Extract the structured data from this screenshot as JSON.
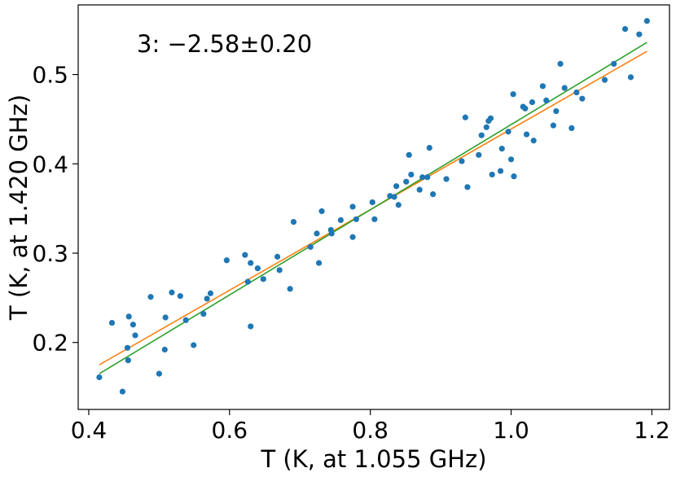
{
  "chart_data": {
    "type": "scatter",
    "xlabel": "T (K, at 1.055 GHz)",
    "ylabel": "T (K, at 1.420 GHz)",
    "annotation": "3: −2.58±0.20",
    "xlim": [
      0.385,
      1.225
    ],
    "ylim": [
      0.125,
      0.578
    ],
    "xticks": [
      0.4,
      0.6,
      0.8,
      1.0,
      1.2
    ],
    "xtick_labels": [
      "0.4",
      "0.6",
      "0.8",
      "1.0",
      "1.2"
    ],
    "yticks": [
      0.2,
      0.3,
      0.4,
      0.5
    ],
    "ytick_labels": [
      "0.2",
      "0.3",
      "0.4",
      "0.5"
    ],
    "grid": false,
    "colors": {
      "points": "#1f77b4",
      "fit_orange": "#ff7f0e",
      "fit_green": "#2ca02c"
    },
    "points": [
      [
        0.415,
        0.161
      ],
      [
        0.433,
        0.222
      ],
      [
        0.448,
        0.145
      ],
      [
        0.455,
        0.194
      ],
      [
        0.456,
        0.18
      ],
      [
        0.457,
        0.229
      ],
      [
        0.463,
        0.22
      ],
      [
        0.466,
        0.208
      ],
      [
        0.488,
        0.251
      ],
      [
        0.5,
        0.165
      ],
      [
        0.508,
        0.192
      ],
      [
        0.509,
        0.228
      ],
      [
        0.518,
        0.256
      ],
      [
        0.53,
        0.252
      ],
      [
        0.538,
        0.225
      ],
      [
        0.549,
        0.197
      ],
      [
        0.563,
        0.232
      ],
      [
        0.568,
        0.249
      ],
      [
        0.573,
        0.255
      ],
      [
        0.596,
        0.292
      ],
      [
        0.622,
        0.298
      ],
      [
        0.626,
        0.268
      ],
      [
        0.63,
        0.289
      ],
      [
        0.63,
        0.218
      ],
      [
        0.64,
        0.283
      ],
      [
        0.648,
        0.271
      ],
      [
        0.668,
        0.296
      ],
      [
        0.671,
        0.281
      ],
      [
        0.686,
        0.26
      ],
      [
        0.691,
        0.335
      ],
      [
        0.715,
        0.307
      ],
      [
        0.724,
        0.322
      ],
      [
        0.727,
        0.289
      ],
      [
        0.731,
        0.347
      ],
      [
        0.744,
        0.326
      ],
      [
        0.745,
        0.322
      ],
      [
        0.758,
        0.337
      ],
      [
        0.775,
        0.352
      ],
      [
        0.775,
        0.318
      ],
      [
        0.78,
        0.338
      ],
      [
        0.803,
        0.357
      ],
      [
        0.806,
        0.338
      ],
      [
        0.828,
        0.364
      ],
      [
        0.834,
        0.363
      ],
      [
        0.837,
        0.375
      ],
      [
        0.84,
        0.354
      ],
      [
        0.851,
        0.38
      ],
      [
        0.855,
        0.41
      ],
      [
        0.858,
        0.388
      ],
      [
        0.87,
        0.371
      ],
      [
        0.874,
        0.385
      ],
      [
        0.881,
        0.385
      ],
      [
        0.884,
        0.418
      ],
      [
        0.889,
        0.366
      ],
      [
        0.908,
        0.383
      ],
      [
        0.93,
        0.403
      ],
      [
        0.935,
        0.452
      ],
      [
        0.938,
        0.374
      ],
      [
        0.954,
        0.41
      ],
      [
        0.958,
        0.432
      ],
      [
        0.965,
        0.441
      ],
      [
        0.968,
        0.448
      ],
      [
        0.971,
        0.451
      ],
      [
        0.973,
        0.388
      ],
      [
        0.985,
        0.392
      ],
      [
        0.987,
        0.417
      ],
      [
        0.996,
        0.436
      ],
      [
        1.0,
        0.405
      ],
      [
        1.003,
        0.478
      ],
      [
        1.004,
        0.386
      ],
      [
        1.017,
        0.464
      ],
      [
        1.02,
        0.462
      ],
      [
        1.022,
        0.433
      ],
      [
        1.03,
        0.469
      ],
      [
        1.032,
        0.426
      ],
      [
        1.045,
        0.487
      ],
      [
        1.05,
        0.471
      ],
      [
        1.06,
        0.443
      ],
      [
        1.064,
        0.459
      ],
      [
        1.07,
        0.512
      ],
      [
        1.076,
        0.485
      ],
      [
        1.086,
        0.44
      ],
      [
        1.093,
        0.48
      ],
      [
        1.101,
        0.473
      ],
      [
        1.133,
        0.494
      ],
      [
        1.146,
        0.512
      ],
      [
        1.162,
        0.551
      ],
      [
        1.17,
        0.497
      ],
      [
        1.182,
        0.545
      ],
      [
        1.193,
        0.56
      ]
    ],
    "series": [
      {
        "x": [
          0.415,
          1.193
        ],
        "y": [
          0.175,
          0.526
        ]
      },
      {
        "x": [
          0.415,
          1.193
        ],
        "y": [
          0.165,
          0.536
        ]
      }
    ]
  }
}
